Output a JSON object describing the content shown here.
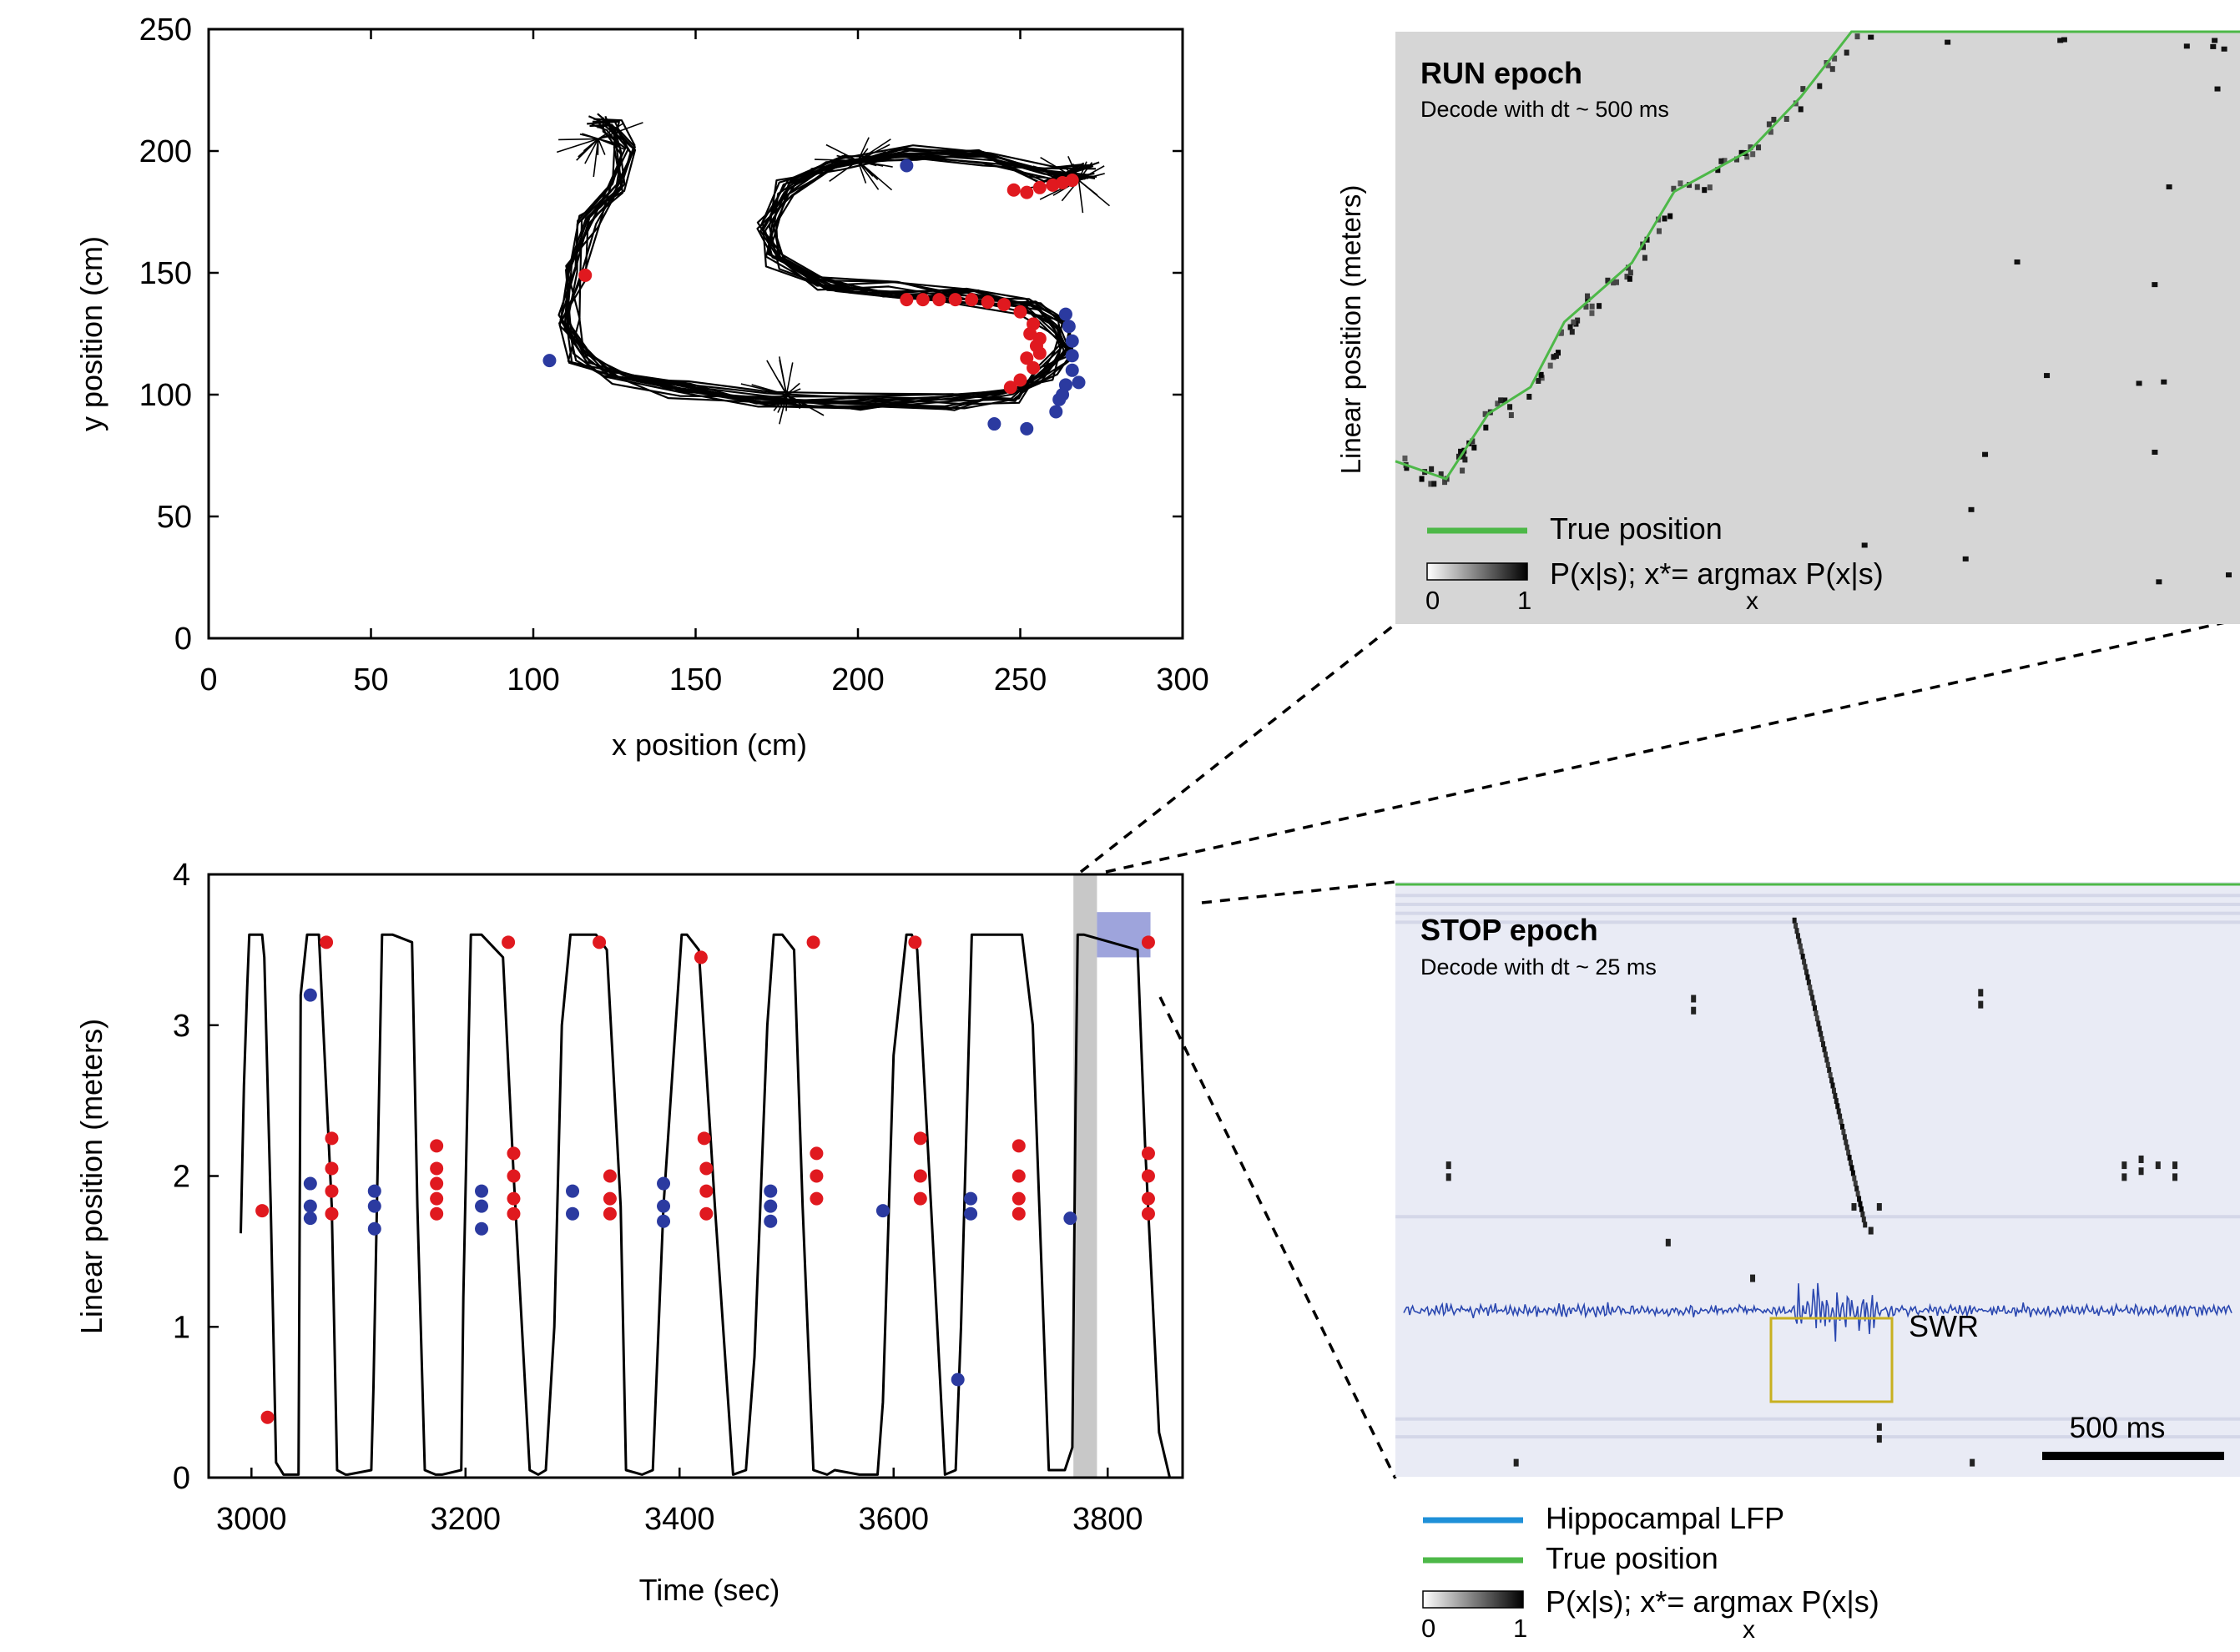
{
  "colors": {
    "trajectory": "#000000",
    "red_events": "#e0191f",
    "blue_events": "#2b3aa0",
    "true_position": "#4db848",
    "lfp": "#2a47b0",
    "lfp_legend": "#1f90d8",
    "swr_box": "#c8b020",
    "highlight_run": "#c8c8c8",
    "highlight_stop": "#9ea4dc",
    "run_panel_bg": "#d6d6d6",
    "stop_panel_bg": "#e9ebf5"
  },
  "chart_data": [
    {
      "id": "xy",
      "type": "scatter",
      "xlabel": "x position (cm)",
      "ylabel": "y position (cm)",
      "xlim": [
        0,
        300
      ],
      "ylim": [
        0,
        250
      ],
      "xticks": [
        "0",
        "50",
        "100",
        "150",
        "200",
        "250",
        "300"
      ],
      "yticks": [
        "0",
        "50",
        "100",
        "150",
        "200",
        "250"
      ],
      "grid": false,
      "path": [
        [
          120,
          213
        ],
        [
          124,
          210
        ],
        [
          128,
          200
        ],
        [
          125,
          185
        ],
        [
          117,
          170
        ],
        [
          113,
          150
        ],
        [
          111,
          130
        ],
        [
          114,
          116
        ],
        [
          125,
          107
        ],
        [
          145,
          102
        ],
        [
          170,
          98
        ],
        [
          200,
          97
        ],
        [
          230,
          97
        ],
        [
          248,
          100
        ],
        [
          258,
          108
        ],
        [
          263,
          118
        ],
        [
          262,
          128
        ],
        [
          253,
          136
        ],
        [
          235,
          140
        ],
        [
          210,
          143
        ],
        [
          190,
          146
        ],
        [
          175,
          155
        ],
        [
          172,
          170
        ],
        [
          178,
          185
        ],
        [
          192,
          195
        ],
        [
          215,
          199
        ],
        [
          240,
          197
        ],
        [
          258,
          190
        ],
        [
          272,
          192
        ]
      ],
      "red_points": [
        [
          116,
          149
        ],
        [
          215,
          139
        ],
        [
          220,
          139
        ],
        [
          225,
          139
        ],
        [
          230,
          139
        ],
        [
          235,
          139
        ],
        [
          240,
          138
        ],
        [
          245,
          137
        ],
        [
          250,
          134
        ],
        [
          254,
          129
        ],
        [
          256,
          123
        ],
        [
          256,
          117
        ],
        [
          254,
          111
        ],
        [
          250,
          106
        ],
        [
          247,
          103
        ],
        [
          253,
          125
        ],
        [
          252,
          115
        ],
        [
          255,
          120
        ],
        [
          248,
          184
        ],
        [
          252,
          183
        ],
        [
          256,
          185
        ],
        [
          260,
          186
        ],
        [
          263,
          187
        ],
        [
          266,
          188
        ]
      ],
      "blue_points": [
        [
          105,
          114
        ],
        [
          215,
          194
        ],
        [
          242,
          88
        ],
        [
          252,
          86
        ],
        [
          262,
          98
        ],
        [
          264,
          104
        ],
        [
          266,
          110
        ],
        [
          266,
          116
        ],
        [
          266,
          122
        ],
        [
          265,
          128
        ],
        [
          264,
          133
        ],
        [
          261,
          93
        ],
        [
          263,
          100
        ],
        [
          268,
          105
        ]
      ]
    },
    {
      "id": "time",
      "type": "line",
      "xlabel": "Time (sec)",
      "ylabel": "Linear position (meters)",
      "xlim": [
        2960,
        3870
      ],
      "ylim": [
        0,
        4
      ],
      "xticks": [
        "3000",
        "3200",
        "3400",
        "3600",
        "3800"
      ],
      "yticks": [
        "0",
        "1",
        "2",
        "3",
        "4"
      ],
      "grid": false,
      "series": [
        {
          "x": [
            2990,
            2993,
            2996,
            2998,
            3010,
            3012,
            3018,
            3023,
            3030,
            3044,
            3046,
            3052,
            3063,
            3075,
            3080,
            3088,
            3090,
            3112,
            3114,
            3122,
            3132,
            3150,
            3155,
            3162,
            3172,
            3178,
            3196,
            3198,
            3205,
            3215,
            3235,
            3245,
            3260,
            3268,
            3275,
            3283,
            3290,
            3298,
            3322,
            3332,
            3345,
            3350,
            3365,
            3375,
            3385,
            3402,
            3407,
            3418,
            3433,
            3450,
            3462,
            3470,
            3482,
            3488,
            3496,
            3507,
            3515,
            3525,
            3538,
            3545,
            3568,
            3585,
            3590,
            3600,
            3612,
            3617,
            3622,
            3635,
            3648,
            3658,
            3663,
            3673,
            3700,
            3720,
            3730,
            3745,
            3760,
            3767,
            3770,
            3772,
            3778,
            3828,
            3835,
            3848,
            3858
          ],
          "y": [
            1.62,
            2.6,
            3.25,
            3.6,
            3.6,
            3.45,
            1.8,
            0.1,
            0.02,
            0.02,
            3.2,
            3.6,
            3.6,
            1.8,
            0.05,
            0.02,
            0.02,
            0.05,
            0.6,
            3.6,
            3.6,
            3.55,
            1.8,
            0.05,
            0.02,
            0.02,
            0.05,
            1.2,
            3.6,
            3.6,
            3.45,
            2.0,
            0.05,
            0.02,
            0.05,
            1.0,
            3.0,
            3.6,
            3.6,
            3.5,
            1.8,
            0.05,
            0.02,
            0.05,
            1.8,
            3.6,
            3.6,
            3.5,
            1.8,
            0.02,
            0.05,
            0.8,
            3.0,
            3.6,
            3.6,
            3.5,
            1.8,
            0.05,
            0.02,
            0.05,
            0.02,
            0.02,
            0.5,
            2.8,
            3.6,
            3.6,
            3.5,
            1.8,
            0.02,
            0.05,
            1.0,
            3.6,
            3.6,
            3.6,
            3.0,
            0.05,
            0.05,
            0.2,
            2.5,
            3.6,
            3.6,
            3.5,
            2.2,
            0.3,
            0.0
          ]
        }
      ],
      "red_points": [
        [
          3010,
          1.77
        ],
        [
          3015,
          0.4
        ],
        [
          3070,
          3.55
        ],
        [
          3075,
          2.25
        ],
        [
          3075,
          2.05
        ],
        [
          3075,
          1.9
        ],
        [
          3075,
          1.75
        ],
        [
          3173,
          2.2
        ],
        [
          3173,
          2.05
        ],
        [
          3173,
          1.95
        ],
        [
          3173,
          1.85
        ],
        [
          3173,
          1.75
        ],
        [
          3240,
          3.55
        ],
        [
          3245,
          2.15
        ],
        [
          3245,
          2.0
        ],
        [
          3245,
          1.85
        ],
        [
          3245,
          1.75
        ],
        [
          3325,
          3.55
        ],
        [
          3335,
          2.0
        ],
        [
          3335,
          1.85
        ],
        [
          3335,
          1.75
        ],
        [
          3420,
          3.45
        ],
        [
          3423,
          2.25
        ],
        [
          3425,
          2.05
        ],
        [
          3425,
          1.9
        ],
        [
          3425,
          1.75
        ],
        [
          3525,
          3.55
        ],
        [
          3528,
          2.15
        ],
        [
          3528,
          2.0
        ],
        [
          3528,
          1.85
        ],
        [
          3620,
          3.55
        ],
        [
          3625,
          2.25
        ],
        [
          3625,
          2.0
        ],
        [
          3625,
          1.85
        ],
        [
          3717,
          2.2
        ],
        [
          3717,
          2.0
        ],
        [
          3717,
          1.85
        ],
        [
          3717,
          1.75
        ],
        [
          3838,
          3.55
        ],
        [
          3838,
          2.15
        ],
        [
          3838,
          2.0
        ],
        [
          3838,
          1.85
        ],
        [
          3838,
          1.75
        ]
      ],
      "blue_points": [
        [
          3055,
          3.2
        ],
        [
          3055,
          1.95
        ],
        [
          3055,
          1.8
        ],
        [
          3055,
          1.72
        ],
        [
          3115,
          1.9
        ],
        [
          3115,
          1.8
        ],
        [
          3115,
          1.65
        ],
        [
          3215,
          1.9
        ],
        [
          3215,
          1.8
        ],
        [
          3215,
          1.65
        ],
        [
          3300,
          1.9
        ],
        [
          3300,
          1.75
        ],
        [
          3385,
          1.95
        ],
        [
          3385,
          1.8
        ],
        [
          3385,
          1.7
        ],
        [
          3485,
          1.9
        ],
        [
          3485,
          1.8
        ],
        [
          3485,
          1.7
        ],
        [
          3590,
          1.77
        ],
        [
          3660,
          0.65
        ],
        [
          3672,
          1.85
        ],
        [
          3672,
          1.75
        ],
        [
          3765,
          1.72
        ]
      ],
      "highlight_run": {
        "x": [
          3768,
          3790
        ],
        "y": [
          0,
          4
        ]
      },
      "highlight_stop": {
        "x": [
          3790,
          3840
        ],
        "y": [
          3.45,
          3.75
        ]
      }
    },
    {
      "id": "run",
      "type": "heatmap",
      "title": "RUN epoch",
      "subtitle": "Decode with dt ~ 500 ms",
      "ylabel": "Linear position (meters)",
      "legend_true": "True position",
      "legend_prob": "P(x|s); x*= argmax P(x|s)",
      "legend_prob_sub": "x",
      "colorbar_min": "0",
      "colorbar_max": "1",
      "true_position": [
        [
          0.0,
          0.725
        ],
        [
          0.06,
          0.755
        ],
        [
          0.11,
          0.645
        ],
        [
          0.16,
          0.6
        ],
        [
          0.2,
          0.49
        ],
        [
          0.28,
          0.39
        ],
        [
          0.33,
          0.27
        ],
        [
          0.42,
          0.2
        ],
        [
          0.48,
          0.11
        ],
        [
          0.54,
          0.0
        ],
        [
          1.0,
          0.0
        ]
      ]
    },
    {
      "id": "stop",
      "type": "heatmap",
      "title": "STOP epoch",
      "subtitle": "Decode with dt ~ 25 ms",
      "annotation": "SWR",
      "scalebar_label": "500 ms",
      "legend_lfp": "Hippocampal LFP",
      "legend_true": "True position",
      "legend_prob": "P(x|s); x*= argmax P(x|s)",
      "legend_prob_sub": "x",
      "colorbar_min": "0",
      "colorbar_max": "1"
    }
  ]
}
